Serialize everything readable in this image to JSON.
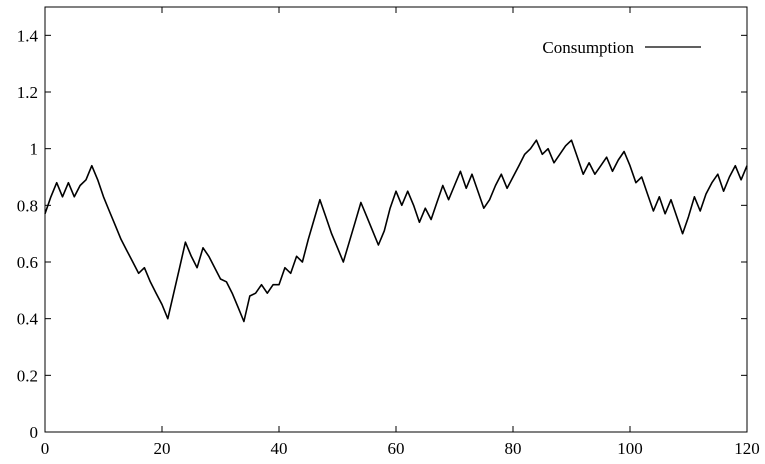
{
  "chart_data": {
    "type": "line",
    "title": "",
    "xlabel": "",
    "ylabel": "",
    "xlim": [
      0,
      120
    ],
    "ylim": [
      0,
      1.5
    ],
    "x_ticks": [
      "0",
      "20",
      "40",
      "60",
      "80",
      "100",
      "120"
    ],
    "y_ticks": [
      "0",
      "0.2",
      "0.4",
      "0.6",
      "0.8",
      "1",
      "1.2",
      "1.4"
    ],
    "legend_position": "top-right",
    "grid": false,
    "series": [
      {
        "name": "Consumption",
        "color": "#000000",
        "x": [
          0,
          1,
          2,
          3,
          4,
          5,
          6,
          7,
          8,
          9,
          10,
          11,
          12,
          13,
          14,
          15,
          16,
          17,
          18,
          19,
          20,
          21,
          22,
          23,
          24,
          25,
          26,
          27,
          28,
          29,
          30,
          31,
          32,
          33,
          34,
          35,
          36,
          37,
          38,
          39,
          40,
          41,
          42,
          43,
          44,
          45,
          46,
          47,
          48,
          49,
          50,
          51,
          52,
          53,
          54,
          55,
          56,
          57,
          58,
          59,
          60,
          61,
          62,
          63,
          64,
          65,
          66,
          67,
          68,
          69,
          70,
          71,
          72,
          73,
          74,
          75,
          76,
          77,
          78,
          79,
          80,
          81,
          82,
          83,
          84,
          85,
          86,
          87,
          88,
          89,
          90,
          91,
          92,
          93,
          94,
          95,
          96,
          97,
          98,
          99,
          100,
          101,
          102,
          103,
          104,
          105,
          106,
          107,
          108,
          109,
          110,
          111,
          112,
          113,
          114,
          115,
          116,
          117,
          118,
          119,
          120
        ],
        "values": [
          0.77,
          0.83,
          0.88,
          0.83,
          0.88,
          0.83,
          0.87,
          0.89,
          0.94,
          0.89,
          0.83,
          0.78,
          0.73,
          0.68,
          0.64,
          0.6,
          0.56,
          0.58,
          0.53,
          0.49,
          0.45,
          0.4,
          0.49,
          0.58,
          0.67,
          0.62,
          0.58,
          0.65,
          0.62,
          0.58,
          0.54,
          0.53,
          0.49,
          0.44,
          0.39,
          0.48,
          0.49,
          0.52,
          0.49,
          0.52,
          0.52,
          0.58,
          0.56,
          0.62,
          0.6,
          0.68,
          0.75,
          0.82,
          0.76,
          0.7,
          0.65,
          0.6,
          0.67,
          0.74,
          0.81,
          0.76,
          0.71,
          0.66,
          0.71,
          0.79,
          0.85,
          0.8,
          0.85,
          0.8,
          0.74,
          0.79,
          0.75,
          0.81,
          0.87,
          0.82,
          0.87,
          0.92,
          0.86,
          0.91,
          0.85,
          0.79,
          0.82,
          0.87,
          0.91,
          0.86,
          0.9,
          0.94,
          0.98,
          1.0,
          1.03,
          0.98,
          1.0,
          0.95,
          0.98,
          1.01,
          1.03,
          0.97,
          0.91,
          0.95,
          0.91,
          0.94,
          0.97,
          0.92,
          0.96,
          0.99,
          0.94,
          0.88,
          0.9,
          0.84,
          0.78,
          0.83,
          0.77,
          0.82,
          0.76,
          0.7,
          0.76,
          0.83,
          0.78,
          0.84,
          0.88,
          0.91,
          0.85,
          0.9,
          0.94,
          0.89,
          0.94
        ]
      }
    ]
  }
}
